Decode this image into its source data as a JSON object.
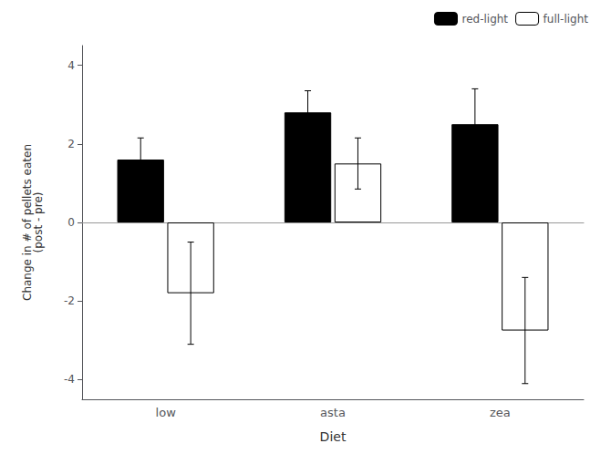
{
  "chart_data": {
    "type": "bar",
    "categories": [
      "low",
      "asta",
      "zea"
    ],
    "series": [
      {
        "name": "red-light",
        "color": "#000000",
        "values": [
          1.6,
          2.8,
          2.5
        ],
        "errors": [
          0.55,
          0.55,
          0.9
        ]
      },
      {
        "name": "full-light",
        "color": "#ffffff",
        "values": [
          -1.8,
          1.5,
          -2.75
        ],
        "errors": [
          1.3,
          0.65,
          1.35
        ]
      }
    ],
    "xlabel": "Diet",
    "ylabel": "Change in # of pellets eaten\n(post - pre)",
    "ylim": [
      -4.5,
      4.5
    ],
    "yticks": [
      -4,
      -2,
      0,
      2,
      4
    ],
    "legend": "upper right",
    "grid": false
  }
}
